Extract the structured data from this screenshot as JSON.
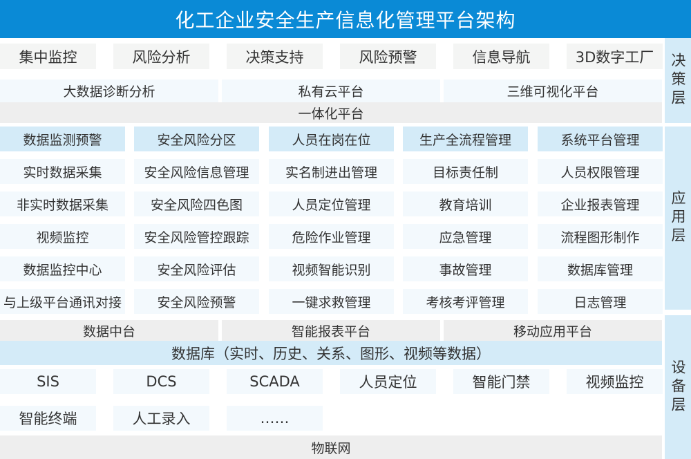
{
  "title": "化工企业安全生产信息化管理平台架构",
  "layers": [
    "决策层",
    "应用层",
    "设备层"
  ],
  "decision": {
    "items": [
      "集中监控",
      "风险分析",
      "决策支持",
      "风险预警",
      "信息导航",
      "3D数字工厂"
    ],
    "platforms": [
      "大数据诊断分析",
      "私有云平台",
      "三维可视化平台"
    ],
    "integrated": "一体化平台"
  },
  "application": {
    "headers": [
      "数据监测预警",
      "安全风险分区",
      "人员在岗在位",
      "生产全流程管理",
      "系统平台管理"
    ],
    "rows": [
      [
        "实时数据采集",
        "安全风险信息管理",
        "实名制进出管理",
        "目标责任制",
        "人员权限管理"
      ],
      [
        "非实时数据采集",
        "安全风险四色图",
        "人员定位管理",
        "教育培训",
        "企业报表管理"
      ],
      [
        "视频监控",
        "安全风险管控跟踪",
        "危险作业管理",
        "应急管理",
        "流程图形制作"
      ],
      [
        "数据监控中心",
        "安全风险评估",
        "视频智能识别",
        "事故管理",
        "数据库管理"
      ],
      [
        "与上级平台通讯对接",
        "安全风险预警",
        "一键求救管理",
        "考核考评管理",
        "日志管理"
      ]
    ]
  },
  "device": {
    "platforms": [
      "数据中台",
      "智能报表平台",
      "移动应用平台"
    ],
    "database": "数据库（实时、历史、关系、图形、视频等数据）",
    "row1": [
      "SIS",
      "DCS",
      "SCADA",
      "人员定位",
      "智能门禁",
      "视频监控"
    ],
    "row2": [
      "智能终端",
      "人工录入",
      "……"
    ],
    "iot": "物联网"
  }
}
